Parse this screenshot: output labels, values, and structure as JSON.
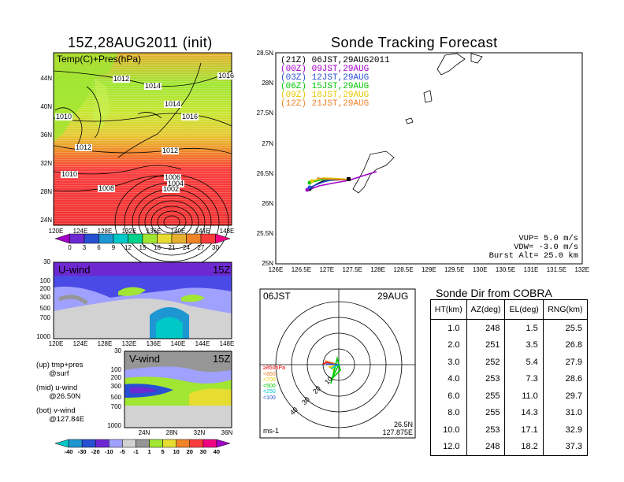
{
  "left_panel": {
    "title": "15Z,28AUG2011 (init)",
    "map_label": "Temp(C)+Pres(hPa)",
    "lat_labels": [
      "44N",
      "40N",
      "36N",
      "32N",
      "28N",
      "24N"
    ],
    "lon_labels": [
      "120E",
      "124E",
      "128E",
      "132E",
      "136E",
      "140E",
      "144E",
      "148E"
    ],
    "isobar_labels": [
      "1016",
      "1012",
      "1014",
      "1010",
      "1014",
      "1016",
      "1012",
      "1012",
      "1010",
      "1008",
      "1006",
      "1004",
      "1002"
    ],
    "temp_colorbar": {
      "labels": [
        "0",
        "3",
        "6",
        "9",
        "12",
        "15",
        "18",
        "21",
        "24",
        "27",
        "30"
      ],
      "colors": [
        "#a000c8",
        "#6e28d2",
        "#2850d2",
        "#1e96d2",
        "#00c8c8",
        "#00d28c",
        "#a0e632",
        "#e6dc32",
        "#e6af2d",
        "#f08228",
        "#fa3c3c",
        "#f00082"
      ]
    }
  },
  "uwind_panel": {
    "label": "U-wind",
    "time": "15Z",
    "pressure_labels": [
      "30",
      "100",
      "200",
      "300",
      "500",
      "700",
      "1000"
    ],
    "lon_labels": [
      "120E",
      "124E",
      "128E",
      "132E",
      "136E",
      "140E",
      "144E",
      "148E"
    ]
  },
  "vwind_panel": {
    "label": "V-wind",
    "time": "15Z",
    "pressure_labels": [
      "30",
      "100",
      "200",
      "300",
      "500",
      "700",
      "1000"
    ],
    "lat_labels": [
      "24N",
      "28N",
      "32N",
      "36N"
    ]
  },
  "notes": {
    "up": "(up) tmp+pres",
    "up2": "@surf",
    "mid": "(mid) u-wind",
    "mid2": "@26.50N",
    "bot": "(bot) v-wind",
    "bot2": "@127.84E"
  },
  "wind_colorbar": {
    "labels": [
      "-40",
      "-30",
      "-20",
      "-10",
      "-5",
      "-1",
      "1",
      "5",
      "10",
      "20",
      "30",
      "40"
    ],
    "colors": [
      "#00c8c8",
      "#1e96d2",
      "#2850d2",
      "#6e28d2",
      "#a0a0ff",
      "#d2d2d2",
      "#969696",
      "#a0e632",
      "#e6dc32",
      "#f08228",
      "#fa3c3c",
      "#f00082",
      "#a000c8"
    ]
  },
  "tracking": {
    "title": "Sonde Tracking Forecast",
    "legend": [
      {
        "key": "(21Z)",
        "text": "06JST,29AUG2011",
        "color": "#000000"
      },
      {
        "key": "(00Z)",
        "text": "09JST,29AUG",
        "color": "#a000c8"
      },
      {
        "key": "(03Z)",
        "text": "12JST,29AUG",
        "color": "#2850d2"
      },
      {
        "key": "(06Z)",
        "text": "15JST,29AUG",
        "color": "#00c800"
      },
      {
        "key": "(09Z)",
        "text": "18JST,29AUG",
        "color": "#e6c800"
      },
      {
        "key": "(12Z)",
        "text": "21JST,29AUG",
        "color": "#f08228"
      }
    ],
    "lat_labels": [
      "28.5N",
      "28N",
      "27.5N",
      "27N",
      "26.5N",
      "26N",
      "25.5N",
      "25N"
    ],
    "lon_labels": [
      "126E",
      "126.5E",
      "127E",
      "127.5E",
      "128E",
      "128.5E",
      "129E",
      "129.5E",
      "130E",
      "130.5E",
      "131E",
      "131.5E",
      "132E"
    ],
    "params": {
      "vup": "VUP= 5.0 m/s",
      "vdw": "VDW= -3.0 m/s",
      "burst": "Burst Alt= 25.0 km"
    }
  },
  "polar": {
    "time_left": "06JST",
    "date_right": "29AUG",
    "ring_labels": [
      "10",
      "20",
      "30",
      "40"
    ],
    "unit": "ms-1",
    "loc1": "26.5N",
    "loc2": "127.875E",
    "levels": [
      "≥850hPa",
      "<850",
      "<700",
      "<500",
      "<250",
      "<100"
    ],
    "level_colors": [
      "#f00000",
      "#f08228",
      "#e6c800",
      "#00c800",
      "#00c8c8",
      "#2850d2"
    ]
  },
  "sonde_table": {
    "title": "Sonde Dir from COBRA",
    "headers": [
      "HT(km)",
      "AZ(deg)",
      "EL(deg)",
      "RNG(km)"
    ],
    "rows": [
      [
        "1.0",
        "248",
        "1.5",
        "25.5"
      ],
      [
        "2.0",
        "251",
        "3.5",
        "26.8"
      ],
      [
        "3.0",
        "252",
        "5.4",
        "27.9"
      ],
      [
        "4.0",
        "253",
        "7.3",
        "28.6"
      ],
      [
        "6.0",
        "255",
        "11.0",
        "29.7"
      ],
      [
        "8.0",
        "255",
        "14.3",
        "31.0"
      ],
      [
        "10.0",
        "253",
        "17.1",
        "32.9"
      ],
      [
        "12.0",
        "248",
        "18.2",
        "37.3"
      ]
    ]
  }
}
